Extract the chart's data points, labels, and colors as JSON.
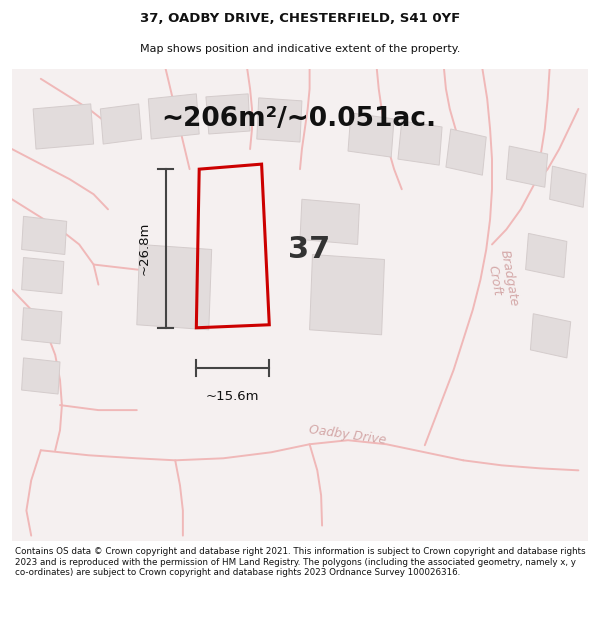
{
  "title_line1": "37, OADBY DRIVE, CHESTERFIELD, S41 0YF",
  "title_line2": "Map shows position and indicative extent of the property.",
  "area_text": "~206m²/~0.051ac.",
  "dim_height": "~26.8m",
  "dim_width": "~15.6m",
  "number_label": "37",
  "footer_text": "Contains OS data © Crown copyright and database right 2021. This information is subject to Crown copyright and database rights 2023 and is reproduced with the permission of HM Land Registry. The polygons (including the associated geometry, namely x, y co-ordinates) are subject to Crown copyright and database rights 2023 Ordnance Survey 100026316.",
  "map_bg": "#f5f0f0",
  "road_color": "#f0b8b8",
  "plot_color": "#cc0000",
  "building_fill": "#e2dcdc",
  "building_edge": "#d4cccc",
  "dim_color": "#444444",
  "title_color": "#111111",
  "footer_color": "#111111",
  "road_name_color": "#d4a8a8",
  "street_name1": "Oadby Drive",
  "street_name2": "Bradgate\nCroft"
}
